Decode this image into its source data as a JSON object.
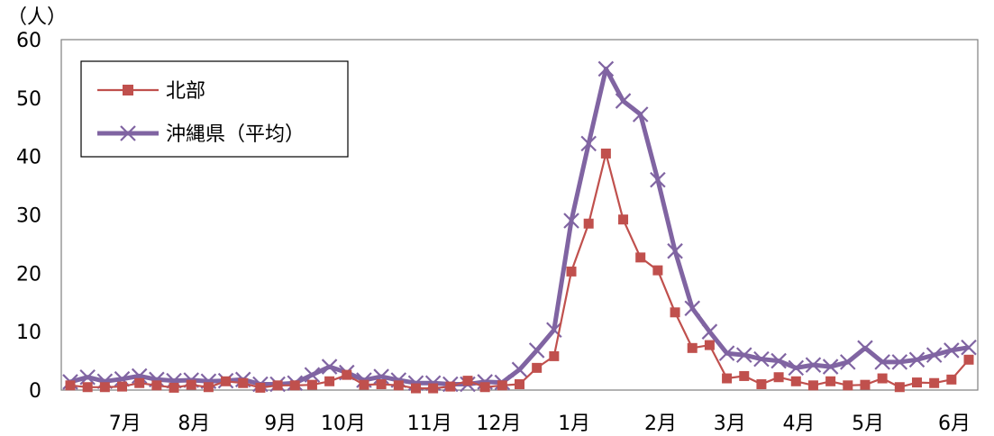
{
  "chart_data": {
    "type": "line",
    "ylabel": "（人）",
    "ylim": [
      0,
      60
    ],
    "yticks": [
      0,
      10,
      20,
      30,
      40,
      50,
      60
    ],
    "x_count": 53,
    "month_labels": [
      {
        "label": "7月",
        "x": 4
      },
      {
        "label": "8月",
        "x": 8
      },
      {
        "label": "9月",
        "x": 13
      },
      {
        "label": "10月",
        "x": 17
      },
      {
        "label": "11月",
        "x": 22
      },
      {
        "label": "12月",
        "x": 26
      },
      {
        "label": "1月",
        "x": 30
      },
      {
        "label": "2月",
        "x": 35
      },
      {
        "label": "3月",
        "x": 39
      },
      {
        "label": "4月",
        "x": 43
      },
      {
        "label": "5月",
        "x": 47
      },
      {
        "label": "6月",
        "x": 52
      }
    ],
    "legend_position": "top-left",
    "grid": false,
    "series": [
      {
        "name": "北部",
        "color": "#C0504D",
        "marker": "square",
        "values": [
          0.8,
          0.5,
          0.5,
          0.6,
          1.2,
          0.8,
          0.4,
          0.9,
          0.5,
          1.5,
          1.2,
          0.4,
          0.8,
          0.8,
          0.9,
          1.5,
          2.6,
          0.9,
          1.0,
          0.8,
          0.3,
          0.3,
          0.6,
          1.6,
          0.5,
          0.8,
          1.0,
          3.8,
          5.8,
          20.3,
          28.5,
          40.5,
          29.2,
          22.7,
          20.5,
          13.3,
          7.2,
          7.7,
          2.0,
          2.4,
          1.0,
          2.2,
          1.5,
          0.8,
          1.5,
          0.8,
          0.9,
          2.0,
          0.5,
          1.3,
          1.2,
          1.8,
          5.2
        ]
      },
      {
        "name": "沖縄県（平均）",
        "color": "#8064A2",
        "marker": "x",
        "values": [
          1.4,
          2.2,
          1.5,
          1.9,
          2.4,
          1.8,
          1.6,
          1.7,
          1.5,
          1.6,
          1.8,
          1.0,
          1.0,
          1.2,
          2.6,
          4.0,
          3.0,
          1.7,
          2.3,
          1.7,
          1.2,
          1.2,
          1.0,
          1.0,
          1.4,
          1.3,
          3.5,
          6.8,
          10.3,
          29.0,
          42.2,
          55.0,
          49.5,
          47.2,
          36.0,
          23.8,
          14.0,
          10.0,
          6.3,
          6.0,
          5.3,
          5.0,
          3.8,
          4.3,
          4.0,
          4.8,
          7.2,
          4.8,
          4.8,
          5.2,
          6.0,
          6.8,
          7.3
        ]
      }
    ]
  }
}
